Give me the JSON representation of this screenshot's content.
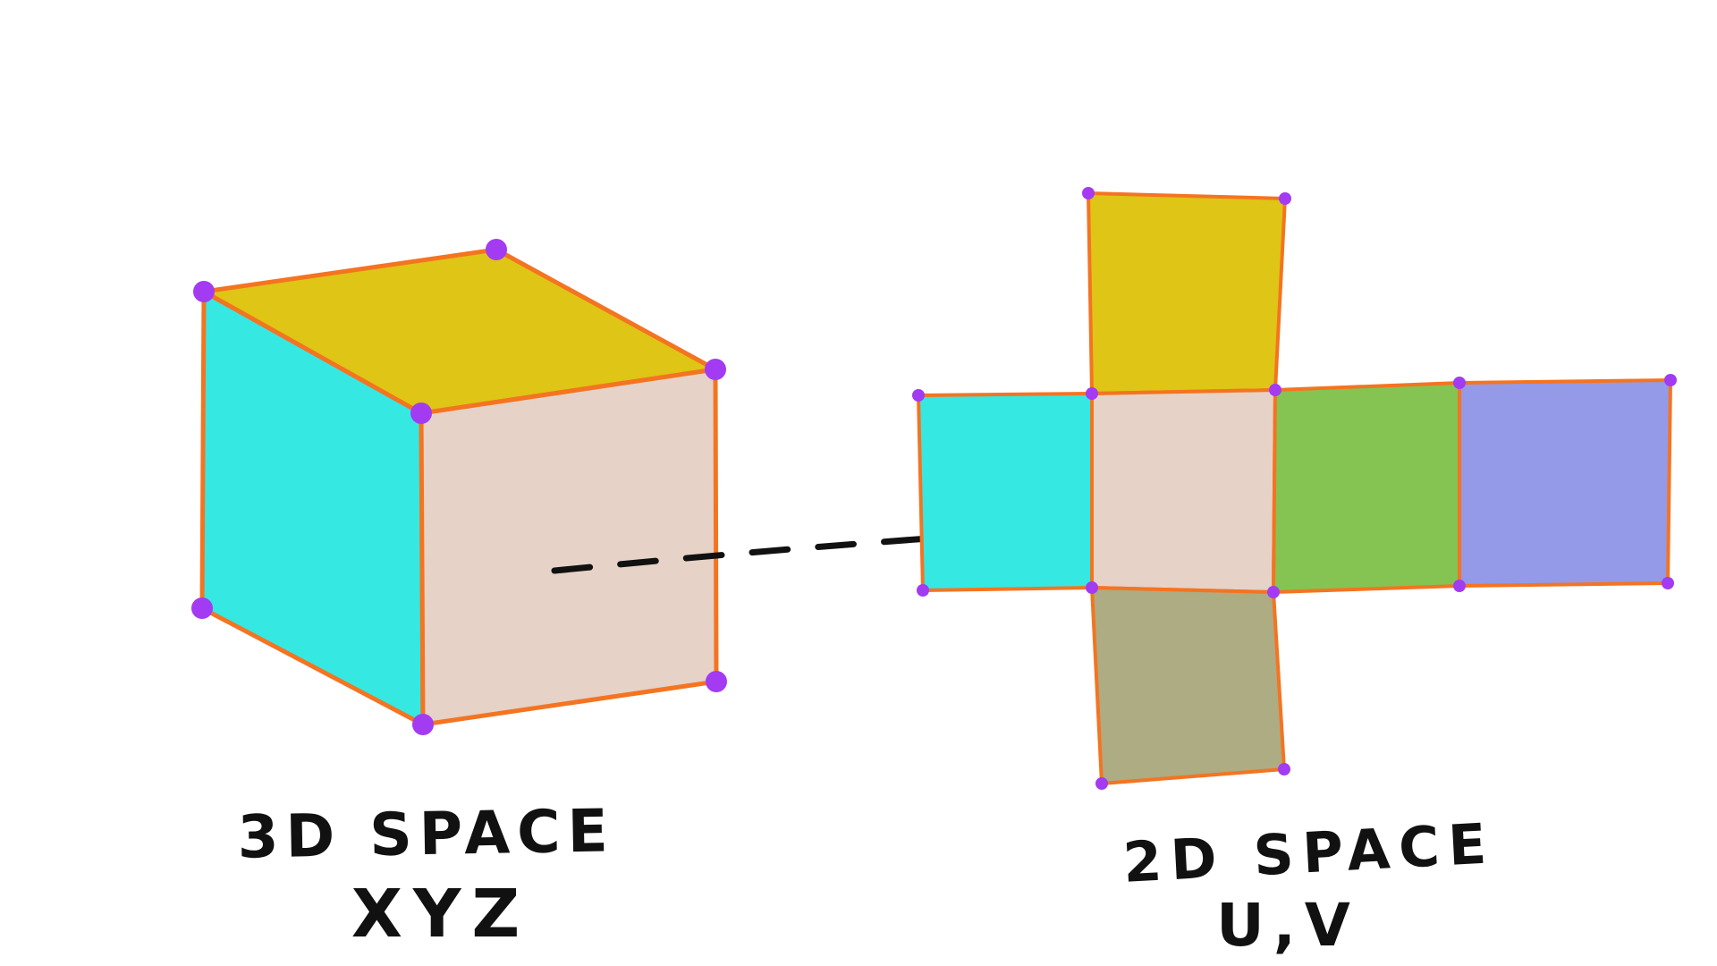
{
  "colors": {
    "edge": "#f47421",
    "vertex": "#a23bf2",
    "top_face": "#dfc515",
    "left_face": "#36e8e2",
    "front_face": "#e6d2c7",
    "right_face": "#85c452",
    "back_face": "#949ae8",
    "bottom_face": "#aeac82",
    "ink": "#111111"
  },
  "labels": {
    "space3d_title": "3D SPACE",
    "space3d_axes": "XYZ",
    "space2d_title": "2D SPACE",
    "space2d_axes": "U,V"
  },
  "cube": {
    "faces": [
      "left",
      "top",
      "front"
    ],
    "vertex_count": 7
  },
  "uv_net": {
    "faces": [
      "top",
      "left",
      "front",
      "right",
      "back",
      "bottom"
    ],
    "vertex_count": 14
  },
  "arrow": {
    "style": "dashed",
    "from": "cube-front-face",
    "to": "uv-front-face"
  }
}
